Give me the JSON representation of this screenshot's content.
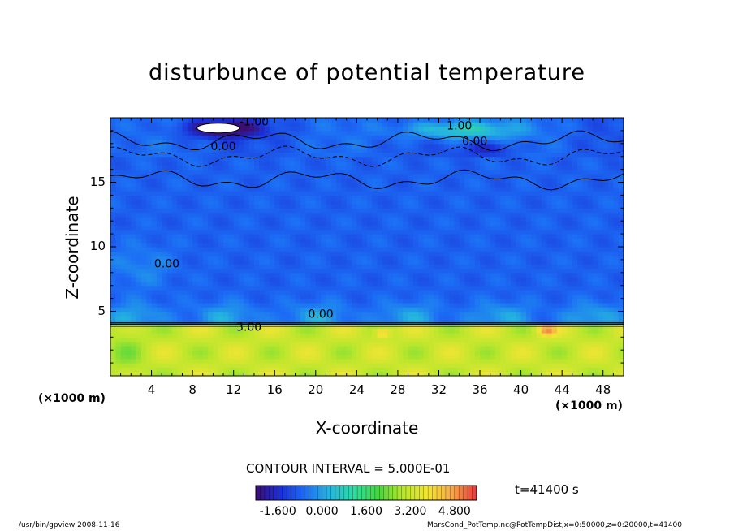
{
  "chart_data": {
    "type": "heatmap",
    "title": "disturbunce of potential temperature",
    "xlabel": "X-coordinate",
    "ylabel": "Z-coordinate",
    "x_unit": "(×1000 m)",
    "z_unit": "(×1000 m)",
    "xlim": [
      0,
      50
    ],
    "ylim": [
      0,
      20
    ],
    "x_ticks": [
      4,
      8,
      12,
      16,
      20,
      24,
      28,
      32,
      36,
      40,
      44,
      48
    ],
    "y_ticks": [
      5,
      10,
      15
    ],
    "contour_labels": [
      {
        "text": "-1.00",
        "x": 14.0,
        "z": 19.4
      },
      {
        "text": "1.00",
        "x": 34.0,
        "z": 19.1
      },
      {
        "text": "0.00",
        "x": 11.0,
        "z": 17.5
      },
      {
        "text": "0.00",
        "x": 35.5,
        "z": 17.9
      },
      {
        "text": "0.00",
        "x": 5.5,
        "z": 8.4
      },
      {
        "text": "0.00",
        "x": 20.5,
        "z": 4.5
      },
      {
        "text": "3.00",
        "x": 13.5,
        "z": 3.5
      }
    ],
    "contour_interval": "CONTOUR INTERVAL = 5.000E-01",
    "time_label": "t=41400 s",
    "colorbar": {
      "min": -2.4,
      "max": 5.6,
      "tick_labels": [
        "-1.600",
        "0.000",
        "1.600",
        "3.200",
        "4.800"
      ]
    },
    "regions": {
      "lower_layer_top": 4,
      "lower_layer_value": 3.2,
      "upper_troposphere_value": -0.8
    }
  },
  "footer": {
    "left": "/usr/bin/gpview  2008-11-16",
    "right": "MarsCond_PotTemp.nc@PotTempDist,x=0:50000,z=0:20000,t=41400"
  },
  "colors": {
    "cb_stops": [
      "#3b0f70",
      "#1b2fd6",
      "#1c6cf5",
      "#24b5e0",
      "#2fdca0",
      "#47d640",
      "#b7e62c",
      "#f2e534",
      "#f7a84a",
      "#e8383a"
    ]
  }
}
